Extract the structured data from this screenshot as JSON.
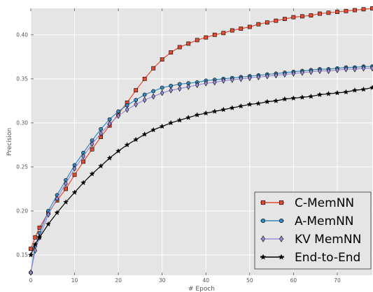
{
  "chart_data": {
    "type": "line",
    "title": "",
    "xlabel": "# Epoch",
    "ylabel": "Precision",
    "xlim": [
      0,
      78
    ],
    "ylim": [
      0.127,
      0.43
    ],
    "grid": true,
    "legend_position": "bottom-right",
    "xticks": [
      "0",
      "10",
      "20",
      "30",
      "40",
      "50",
      "60",
      "70"
    ],
    "yticks": [
      "0.15",
      "0.20",
      "0.25",
      "0.30",
      "0.35",
      "0.40"
    ],
    "series": [
      {
        "name": "C-MemNN",
        "color": "#e24a33",
        "marker": "square",
        "points": [
          [
            0,
            0.157
          ],
          [
            1,
            0.17
          ],
          [
            2,
            0.181
          ],
          [
            4,
            0.198
          ],
          [
            6,
            0.212
          ],
          [
            8,
            0.225
          ],
          [
            10,
            0.241
          ],
          [
            12,
            0.256
          ],
          [
            14,
            0.27
          ],
          [
            16,
            0.284
          ],
          [
            18,
            0.297
          ],
          [
            20,
            0.31
          ],
          [
            22,
            0.323
          ],
          [
            24,
            0.337
          ],
          [
            26,
            0.35
          ],
          [
            28,
            0.362
          ],
          [
            30,
            0.372
          ],
          [
            32,
            0.38
          ],
          [
            34,
            0.386
          ],
          [
            36,
            0.39
          ],
          [
            38,
            0.394
          ],
          [
            40,
            0.397
          ],
          [
            42,
            0.4
          ],
          [
            44,
            0.402
          ],
          [
            46,
            0.405
          ],
          [
            48,
            0.407
          ],
          [
            50,
            0.409
          ],
          [
            52,
            0.412
          ],
          [
            54,
            0.414
          ],
          [
            56,
            0.416
          ],
          [
            58,
            0.418
          ],
          [
            60,
            0.42
          ],
          [
            62,
            0.421
          ],
          [
            64,
            0.422
          ],
          [
            66,
            0.424
          ],
          [
            68,
            0.425
          ],
          [
            70,
            0.426
          ],
          [
            72,
            0.427
          ],
          [
            74,
            0.428
          ],
          [
            76,
            0.429
          ],
          [
            78,
            0.43
          ]
        ]
      },
      {
        "name": "A-MemNN",
        "color": "#348abd",
        "marker": "circle",
        "points": [
          [
            0,
            0.13
          ],
          [
            1,
            0.16
          ],
          [
            2,
            0.175
          ],
          [
            4,
            0.2
          ],
          [
            6,
            0.218
          ],
          [
            8,
            0.235
          ],
          [
            10,
            0.252
          ],
          [
            12,
            0.266
          ],
          [
            14,
            0.28
          ],
          [
            16,
            0.293
          ],
          [
            18,
            0.304
          ],
          [
            20,
            0.313
          ],
          [
            22,
            0.32
          ],
          [
            24,
            0.326
          ],
          [
            26,
            0.332
          ],
          [
            28,
            0.336
          ],
          [
            30,
            0.34
          ],
          [
            32,
            0.342
          ],
          [
            34,
            0.344
          ],
          [
            36,
            0.345
          ],
          [
            38,
            0.346
          ],
          [
            40,
            0.348
          ],
          [
            42,
            0.349
          ],
          [
            44,
            0.35
          ],
          [
            46,
            0.351
          ],
          [
            48,
            0.352
          ],
          [
            50,
            0.353
          ],
          [
            52,
            0.354
          ],
          [
            54,
            0.355
          ],
          [
            56,
            0.356
          ],
          [
            58,
            0.357
          ],
          [
            60,
            0.358
          ],
          [
            62,
            0.359
          ],
          [
            64,
            0.36
          ],
          [
            66,
            0.361
          ],
          [
            68,
            0.361
          ],
          [
            70,
            0.362
          ],
          [
            72,
            0.363
          ],
          [
            74,
            0.363
          ],
          [
            76,
            0.364
          ],
          [
            78,
            0.364
          ]
        ]
      },
      {
        "name": "KV MemNN",
        "color": "#988ed5",
        "marker": "diamond",
        "points": [
          [
            0,
            0.13
          ],
          [
            1,
            0.155
          ],
          [
            2,
            0.17
          ],
          [
            4,
            0.196
          ],
          [
            6,
            0.214
          ],
          [
            8,
            0.231
          ],
          [
            10,
            0.248
          ],
          [
            12,
            0.262
          ],
          [
            14,
            0.276
          ],
          [
            16,
            0.288
          ],
          [
            18,
            0.299
          ],
          [
            20,
            0.308
          ],
          [
            22,
            0.315
          ],
          [
            24,
            0.321
          ],
          [
            26,
            0.326
          ],
          [
            28,
            0.33
          ],
          [
            30,
            0.334
          ],
          [
            32,
            0.337
          ],
          [
            34,
            0.339
          ],
          [
            36,
            0.341
          ],
          [
            38,
            0.343
          ],
          [
            40,
            0.345
          ],
          [
            42,
            0.346
          ],
          [
            44,
            0.348
          ],
          [
            46,
            0.349
          ],
          [
            48,
            0.35
          ],
          [
            50,
            0.351
          ],
          [
            52,
            0.352
          ],
          [
            54,
            0.353
          ],
          [
            56,
            0.354
          ],
          [
            58,
            0.355
          ],
          [
            60,
            0.356
          ],
          [
            62,
            0.357
          ],
          [
            64,
            0.358
          ],
          [
            66,
            0.359
          ],
          [
            68,
            0.359
          ],
          [
            70,
            0.36
          ],
          [
            72,
            0.361
          ],
          [
            74,
            0.361
          ],
          [
            76,
            0.362
          ],
          [
            78,
            0.362
          ]
        ]
      },
      {
        "name": "End-to-End",
        "color": "#000000",
        "marker": "star",
        "points": [
          [
            0,
            0.15
          ],
          [
            1,
            0.162
          ],
          [
            2,
            0.17
          ],
          [
            4,
            0.185
          ],
          [
            6,
            0.198
          ],
          [
            8,
            0.21
          ],
          [
            10,
            0.221
          ],
          [
            12,
            0.232
          ],
          [
            14,
            0.242
          ],
          [
            16,
            0.251
          ],
          [
            18,
            0.26
          ],
          [
            20,
            0.268
          ],
          [
            22,
            0.275
          ],
          [
            24,
            0.281
          ],
          [
            26,
            0.287
          ],
          [
            28,
            0.292
          ],
          [
            30,
            0.296
          ],
          [
            32,
            0.3
          ],
          [
            34,
            0.303
          ],
          [
            36,
            0.306
          ],
          [
            38,
            0.309
          ],
          [
            40,
            0.311
          ],
          [
            42,
            0.313
          ],
          [
            44,
            0.315
          ],
          [
            46,
            0.317
          ],
          [
            48,
            0.319
          ],
          [
            50,
            0.321
          ],
          [
            52,
            0.322
          ],
          [
            54,
            0.324
          ],
          [
            56,
            0.325
          ],
          [
            58,
            0.327
          ],
          [
            60,
            0.328
          ],
          [
            62,
            0.329
          ],
          [
            64,
            0.33
          ],
          [
            66,
            0.332
          ],
          [
            68,
            0.333
          ],
          [
            70,
            0.334
          ],
          [
            72,
            0.335
          ],
          [
            74,
            0.337
          ],
          [
            76,
            0.338
          ],
          [
            78,
            0.34
          ]
        ]
      }
    ]
  }
}
